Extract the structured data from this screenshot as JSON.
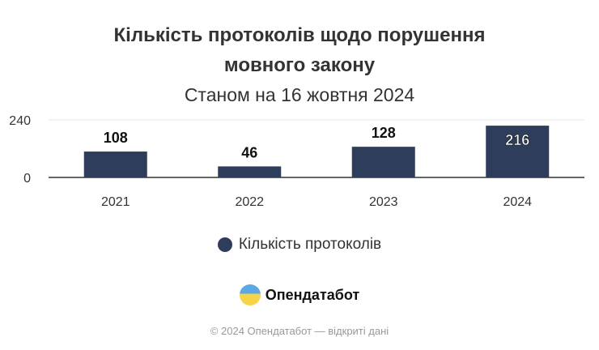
{
  "chart_data": {
    "type": "bar",
    "title": "Кількість протоколів щодо порушення мовного закону",
    "title_lines": [
      "Кількість протоколів щодо порушення",
      "мовного закону"
    ],
    "subtitle": "Станом на 16 жовтня 2024",
    "categories": [
      "2021",
      "2022",
      "2023",
      "2024"
    ],
    "series": [
      {
        "name": "Кількість протоколів",
        "values": [
          108,
          46,
          128,
          216
        ],
        "color": "#2f3d5c"
      }
    ],
    "yticks": [
      0,
      240
    ],
    "ylim": [
      0,
      240
    ],
    "grid": true,
    "legend": "bottom"
  },
  "footer": {
    "brand": "Опендатабот",
    "copyright": "© 2024 Опендатабот — відкриті дані",
    "logo_icon": "opendatabot-logo"
  }
}
